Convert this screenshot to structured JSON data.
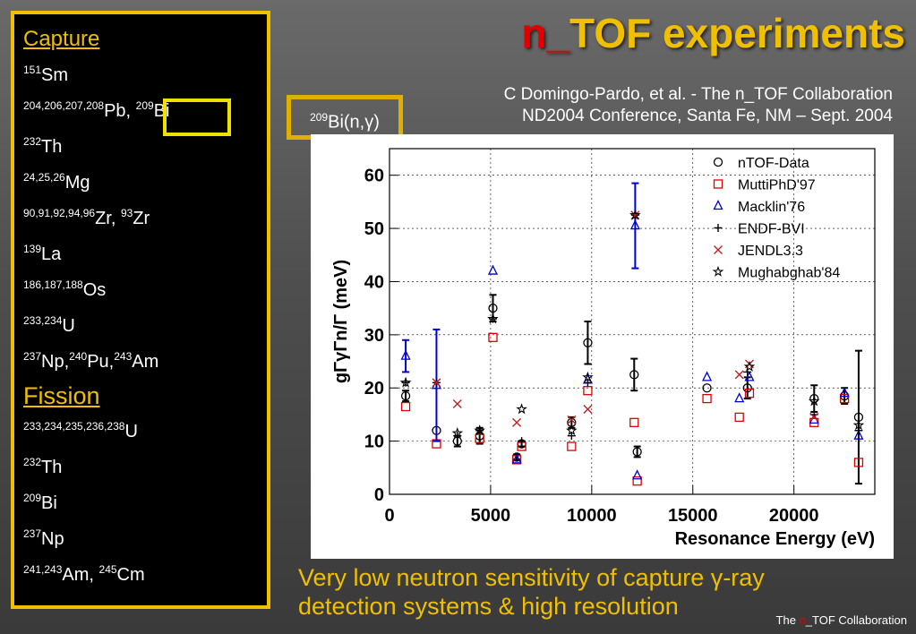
{
  "slide": {
    "title": "TOF experiments",
    "title_prefix": "n_",
    "credit_line1": "C Domingo-Pardo, et al. - The n_TOF Collaboration",
    "credit_line2": "ND2004 Conference, Santa Fe, NM – Sept. 2004",
    "reaction_label": "Bi(n,γ)",
    "reaction_mass": "209",
    "summary_line1": "Very low neutron sensitivity of capture γ-ray",
    "summary_line2": "detection systems & high resolution",
    "footer_prefix": "The ",
    "footer_n": "n",
    "footer_rest": "_TOF Collaboration"
  },
  "sidebar": {
    "capture_heading": "Capture",
    "capture_items": [
      [
        {
          "sup": "151",
          "text": "Sm"
        }
      ],
      [
        {
          "sup": "204,206,207,208",
          "text": "Pb, "
        },
        {
          "sup": "209",
          "text": "Bi"
        }
      ],
      [
        {
          "sup": "232",
          "text": "Th"
        }
      ],
      [
        {
          "sup": "24,25,26",
          "text": "Mg"
        }
      ],
      [
        {
          "sup": "90,91,92,94,96",
          "text": "Zr, "
        },
        {
          "sup": "93",
          "text": "Zr"
        }
      ],
      [
        {
          "sup": "139",
          "text": "La"
        }
      ],
      [
        {
          "sup": "186,187,188",
          "text": "Os"
        }
      ],
      [
        {
          "sup": "233,234",
          "text": "U"
        }
      ],
      [
        {
          "sup": "237",
          "text": "Np,"
        },
        {
          "sup": "240",
          "text": "Pu,"
        },
        {
          "sup": "243",
          "text": "Am"
        }
      ]
    ],
    "fission_heading": "Fission",
    "fission_items": [
      [
        {
          "sup": "233,234,235,236,238",
          "text": "U"
        }
      ],
      [
        {
          "sup": "232",
          "text": "Th"
        }
      ],
      [
        {
          "sup": "209",
          "text": "Bi"
        }
      ],
      [
        {
          "sup": "237",
          "text": "Np"
        }
      ],
      [
        {
          "sup": "241,243",
          "text": "Am, "
        },
        {
          "sup": "245",
          "text": "Cm"
        }
      ]
    ]
  },
  "chart_data": {
    "type": "scatter",
    "xlabel": "Resonance Energy  (eV)",
    "ylabel": "gΓγΓn/Γ  (meV)",
    "xlim": [
      0,
      24000
    ],
    "ylim": [
      0,
      65
    ],
    "xticks": [
      0,
      5000,
      10000,
      15000,
      20000
    ],
    "yticks": [
      0,
      10,
      20,
      30,
      40,
      50,
      60
    ],
    "grid": true,
    "legend_position": "top-right",
    "series": [
      {
        "name": "nTOF-Data",
        "marker": "circle",
        "color": "#000000",
        "points": [
          {
            "x": 801,
            "y": 18.5,
            "err": 1
          },
          {
            "x": 2323,
            "y": 12,
            "err": 0
          },
          {
            "x": 3357,
            "y": 10,
            "err": 1
          },
          {
            "x": 4458,
            "y": 11,
            "err": 1.5
          },
          {
            "x": 5114,
            "y": 35,
            "err": 2.5
          },
          {
            "x": 6292,
            "y": 7,
            "err": 0.5
          },
          {
            "x": 6536,
            "y": 9.5,
            "err": 0.5
          },
          {
            "x": 9004,
            "y": 13.5,
            "err": 1
          },
          {
            "x": 9805,
            "y": 28.5,
            "err": 4
          },
          {
            "x": 12100,
            "y": 22.5,
            "err": 3
          },
          {
            "x": 12250,
            "y": 8,
            "err": 1
          },
          {
            "x": 15700,
            "y": 20,
            "err": 0
          },
          {
            "x": 17700,
            "y": 20,
            "err": 2
          },
          {
            "x": 21000,
            "y": 18,
            "err": 2.5
          },
          {
            "x": 22500,
            "y": 18.5,
            "err": 1.5
          },
          {
            "x": 23200,
            "y": 14.5,
            "err": 12.5
          }
        ]
      },
      {
        "name": "MuttiPhD'97",
        "marker": "square",
        "color": "#dd0000",
        "points": [
          {
            "x": 801,
            "y": 16.5
          },
          {
            "x": 2323,
            "y": 9.5
          },
          {
            "x": 4458,
            "y": 10.5
          },
          {
            "x": 5114,
            "y": 29.5
          },
          {
            "x": 6292,
            "y": 6.5
          },
          {
            "x": 6536,
            "y": 9
          },
          {
            "x": 9004,
            "y": 9
          },
          {
            "x": 9805,
            "y": 19.5
          },
          {
            "x": 12100,
            "y": 13.5
          },
          {
            "x": 12250,
            "y": 2.5
          },
          {
            "x": 15700,
            "y": 18
          },
          {
            "x": 17300,
            "y": 14.5
          },
          {
            "x": 17800,
            "y": 19
          },
          {
            "x": 21000,
            "y": 13.5
          },
          {
            "x": 22500,
            "y": 18
          },
          {
            "x": 23200,
            "y": 6
          }
        ]
      },
      {
        "name": "Macklin'76",
        "marker": "triangle",
        "color": "#0000cc",
        "points": [
          {
            "x": 801,
            "y": 26,
            "err": 3
          },
          {
            "x": 2323,
            "y": 20.5,
            "err": 10.5
          },
          {
            "x": 5114,
            "y": 42
          },
          {
            "x": 6292,
            "y": 6.5
          },
          {
            "x": 9805,
            "y": 21.5
          },
          {
            "x": 12150,
            "y": 50.5,
            "err": 8
          },
          {
            "x": 12250,
            "y": 3.5
          },
          {
            "x": 15700,
            "y": 22
          },
          {
            "x": 17300,
            "y": 18
          },
          {
            "x": 17800,
            "y": 22
          },
          {
            "x": 21000,
            "y": 14
          },
          {
            "x": 22500,
            "y": 19
          },
          {
            "x": 23200,
            "y": 11
          }
        ]
      },
      {
        "name": "ENDF-BVI",
        "marker": "plus",
        "color": "#000000",
        "points": [
          {
            "x": 801,
            "y": 21
          },
          {
            "x": 2323,
            "y": 21
          },
          {
            "x": 3357,
            "y": 11
          },
          {
            "x": 4458,
            "y": 12
          },
          {
            "x": 5114,
            "y": 33
          },
          {
            "x": 6536,
            "y": 10
          },
          {
            "x": 9004,
            "y": 11
          },
          {
            "x": 9805,
            "y": 21
          },
          {
            "x": 12150,
            "y": 52.5
          },
          {
            "x": 17700,
            "y": 23
          },
          {
            "x": 21000,
            "y": 15
          },
          {
            "x": 23200,
            "y": 12
          }
        ]
      },
      {
        "name": "JENDL3.3",
        "marker": "cross",
        "color": "#bb2222",
        "points": [
          {
            "x": 2323,
            "y": 21
          },
          {
            "x": 3357,
            "y": 17
          },
          {
            "x": 6292,
            "y": 13.5
          },
          {
            "x": 9004,
            "y": 14
          },
          {
            "x": 9805,
            "y": 16
          },
          {
            "x": 12150,
            "y": 52.5
          },
          {
            "x": 17300,
            "y": 22.5
          },
          {
            "x": 17800,
            "y": 24.5
          },
          {
            "x": 21000,
            "y": 14.5
          }
        ]
      },
      {
        "name": "Mughabghab'84",
        "marker": "star",
        "color": "#000000",
        "points": [
          {
            "x": 801,
            "y": 21
          },
          {
            "x": 3357,
            "y": 11.5
          },
          {
            "x": 4458,
            "y": 12
          },
          {
            "x": 5114,
            "y": 33
          },
          {
            "x": 6536,
            "y": 16
          },
          {
            "x": 9004,
            "y": 12
          },
          {
            "x": 9805,
            "y": 22
          },
          {
            "x": 12150,
            "y": 52.5
          },
          {
            "x": 17800,
            "y": 24
          },
          {
            "x": 21000,
            "y": 17.5
          },
          {
            "x": 23200,
            "y": 13
          }
        ]
      }
    ]
  }
}
